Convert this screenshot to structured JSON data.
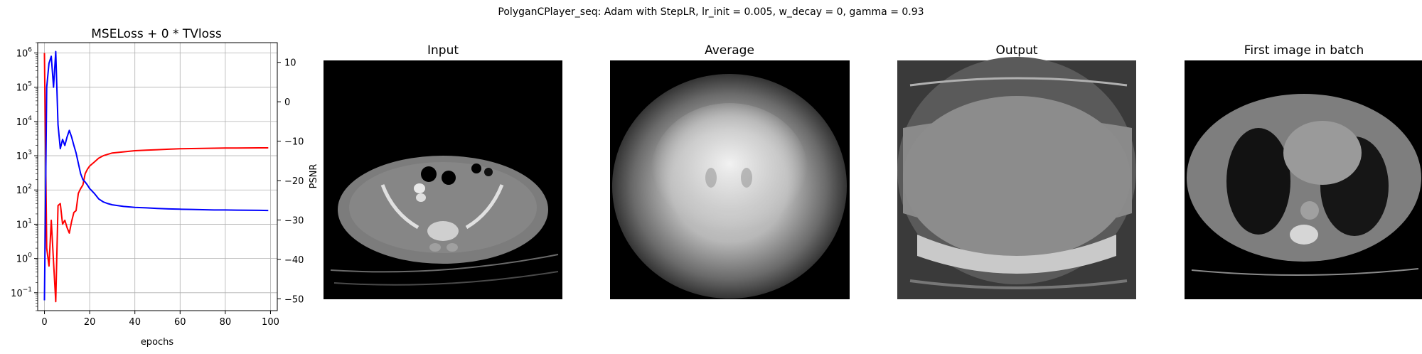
{
  "figure": {
    "suptitle": "PolyganCPlayer_seq: Adam with StepLR, lr_init = 0.005, w_decay = 0, gamma = 0.93"
  },
  "chart_data": [
    {
      "type": "line",
      "title": "MSELoss + 0 * TVloss",
      "xlabel": "epochs",
      "ylabel": "",
      "y2label": "PSNR",
      "xlim": [
        -3,
        103
      ],
      "ylim": [
        0.03,
        2000000
      ],
      "yscale": "log",
      "y2lim": [
        -53,
        15
      ],
      "grid": true,
      "legend": "none",
      "x_ticks": [
        0,
        20,
        40,
        60,
        80,
        100
      ],
      "y_ticks": [
        {
          "value": 0.1,
          "base": "10",
          "exp": "−1"
        },
        {
          "value": 1,
          "base": "10",
          "exp": "0"
        },
        {
          "value": 10,
          "base": "10",
          "exp": "1"
        },
        {
          "value": 100,
          "base": "10",
          "exp": "2"
        },
        {
          "value": 1000,
          "base": "10",
          "exp": "3"
        },
        {
          "value": 10000,
          "base": "10",
          "exp": "4"
        },
        {
          "value": 100000,
          "base": "10",
          "exp": "5"
        },
        {
          "value": 1000000,
          "base": "10",
          "exp": "6"
        }
      ],
      "y2_ticks": [
        10,
        0,
        -10,
        -20,
        -30,
        -40,
        -50
      ],
      "series": [
        {
          "axis": "left",
          "color": "#ff0000",
          "x": [
            0,
            1,
            2,
            3,
            4,
            5,
            6,
            7,
            8,
            9,
            10,
            11,
            12,
            13,
            14,
            15,
            16,
            17,
            18,
            19,
            20,
            22,
            24,
            26,
            28,
            30,
            35,
            40,
            45,
            50,
            55,
            60,
            65,
            70,
            75,
            80,
            85,
            90,
            95,
            99
          ],
          "y": [
            1000000,
            2,
            0.6,
            13,
            0.8,
            0.055,
            35,
            40,
            10,
            13,
            8,
            5.5,
            12,
            22,
            25,
            80,
            110,
            140,
            300,
            400,
            500,
            650,
            850,
            1000,
            1100,
            1200,
            1300,
            1400,
            1450,
            1500,
            1550,
            1600,
            1620,
            1640,
            1660,
            1670,
            1680,
            1690,
            1700,
            1700
          ]
        },
        {
          "axis": "left",
          "color": "#0000ff",
          "x": [
            0,
            1,
            2,
            3,
            4,
            5,
            6,
            7,
            8,
            9,
            10,
            11,
            12,
            13,
            14,
            15,
            16,
            17,
            18,
            19,
            20,
            22,
            24,
            26,
            28,
            30,
            35,
            40,
            45,
            50,
            55,
            60,
            65,
            70,
            75,
            80,
            85,
            90,
            95,
            99
          ],
          "y": [
            0.06,
            100000,
            500000,
            800000,
            100000,
            1100000,
            8000,
            1600,
            3000,
            2000,
            3500,
            5500,
            3500,
            2000,
            1200,
            600,
            300,
            200,
            170,
            140,
            110,
            80,
            55,
            45,
            40,
            37,
            33,
            31,
            30,
            29,
            28,
            27.5,
            27,
            26.5,
            26,
            26,
            25.8,
            25.6,
            25.4,
            25.2
          ]
        }
      ]
    },
    {
      "type": "other",
      "title": "Input"
    },
    {
      "type": "other",
      "title": "Average"
    },
    {
      "type": "other",
      "title": "Output"
    },
    {
      "type": "other",
      "title": "First image in batch"
    }
  ]
}
